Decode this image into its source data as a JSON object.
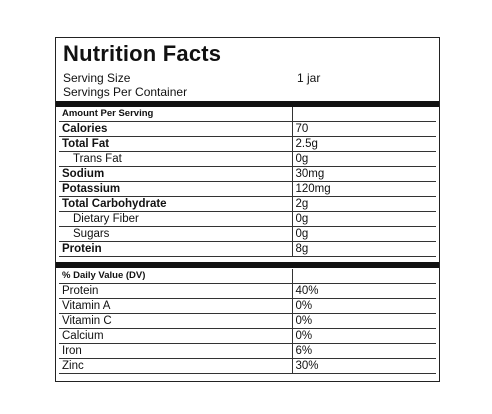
{
  "title": "Nutrition Facts",
  "serving_size_label": "Serving Size",
  "serving_size_value": "1 jar",
  "servings_per_container_label": "Servings Per Container",
  "amount_header": "Amount Per Serving",
  "nutrients": [
    {
      "name": "Calories",
      "value": "70",
      "bold": true
    },
    {
      "name": "Total Fat",
      "value": "2.5g",
      "bold": true
    },
    {
      "name": "Trans Fat",
      "value": "0g",
      "sub": true
    },
    {
      "name": "Sodium",
      "value": "30mg",
      "bold": true
    },
    {
      "name": "Potassium",
      "value": "120mg",
      "bold": true
    },
    {
      "name": "Total Carbohydrate",
      "value": "2g",
      "bold": true
    },
    {
      "name": "Dietary Fiber",
      "value": "0g",
      "sub": true
    },
    {
      "name": "Sugars",
      "value": "0g",
      "sub": true
    },
    {
      "name": "Protein",
      "value": "8g",
      "bold": true
    }
  ],
  "dv_header": "% Daily Value (DV)",
  "daily_values": [
    {
      "name": "Protein",
      "value": "40%"
    },
    {
      "name": "Vitamin A",
      "value": "0%"
    },
    {
      "name": "Vitamin C",
      "value": "0%"
    },
    {
      "name": "Calcium",
      "value": "0%"
    },
    {
      "name": "Iron",
      "value": "6%"
    },
    {
      "name": "Zinc",
      "value": "30%"
    }
  ]
}
